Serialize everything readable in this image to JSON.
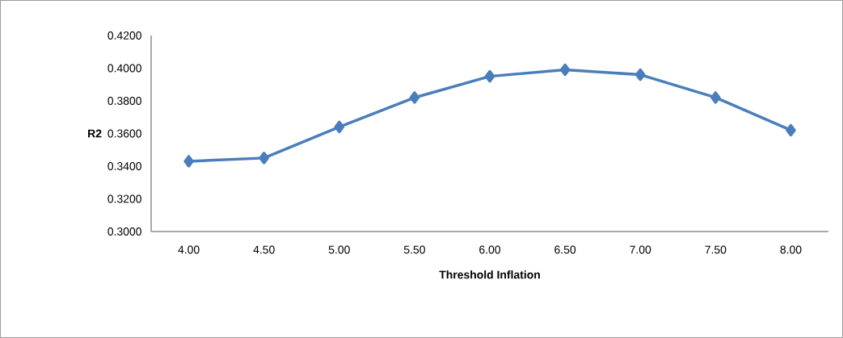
{
  "chart_data": {
    "type": "line",
    "xlabel": "Threshold Inflation",
    "ylabel": "R2",
    "categories": [
      "4.00",
      "4.50",
      "5.00",
      "5.50",
      "6.00",
      "6.50",
      "7.00",
      "7.50",
      "8.00"
    ],
    "series": [
      {
        "color": "#4a7ebb",
        "values": [
          0.343,
          0.345,
          0.364,
          0.382,
          0.395,
          0.399,
          0.396,
          0.382,
          0.362
        ]
      }
    ],
    "ylim": [
      0.3,
      0.42
    ],
    "yticks": [
      {
        "value": 0.3,
        "label": "0.3000"
      },
      {
        "value": 0.32,
        "label": "0.3200"
      },
      {
        "value": 0.34,
        "label": "0.3400"
      },
      {
        "value": 0.36,
        "label": "0.3600"
      },
      {
        "value": 0.38,
        "label": "0.3800"
      },
      {
        "value": 0.4,
        "label": "0.4000"
      },
      {
        "value": 0.42,
        "label": "0.4200"
      }
    ],
    "grid": false,
    "marker": "diamond",
    "line_style": "solid"
  }
}
